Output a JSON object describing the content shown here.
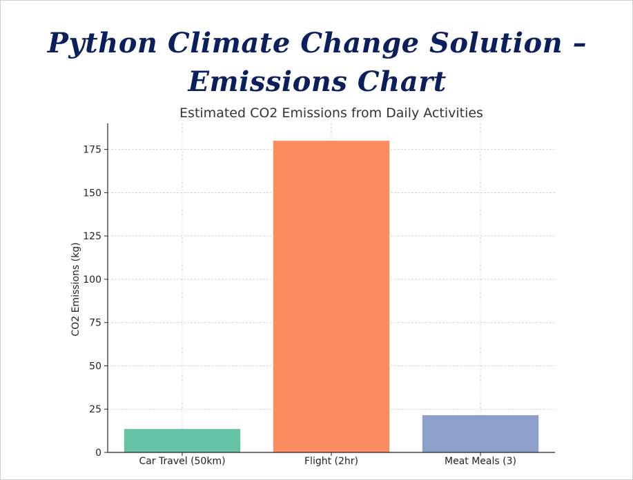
{
  "header": {
    "title_line1": "Python Climate Change Solution –",
    "title_line2": "Emissions Chart"
  },
  "chart_data": {
    "type": "bar",
    "title": "Estimated CO2 Emissions from Daily Activities",
    "xlabel": "",
    "ylabel": "CO2 Emissions (kg)",
    "categories": [
      "Car Travel (50km)",
      "Flight (2hr)",
      "Meat Meals (3)"
    ],
    "values": [
      13.5,
      180,
      21.5
    ],
    "colors": [
      "#66c2a5",
      "#fc8d62",
      "#8da0cb"
    ],
    "ylim": [
      0,
      190
    ],
    "yticks": [
      0,
      25,
      50,
      75,
      100,
      125,
      150,
      175
    ],
    "grid": true
  }
}
